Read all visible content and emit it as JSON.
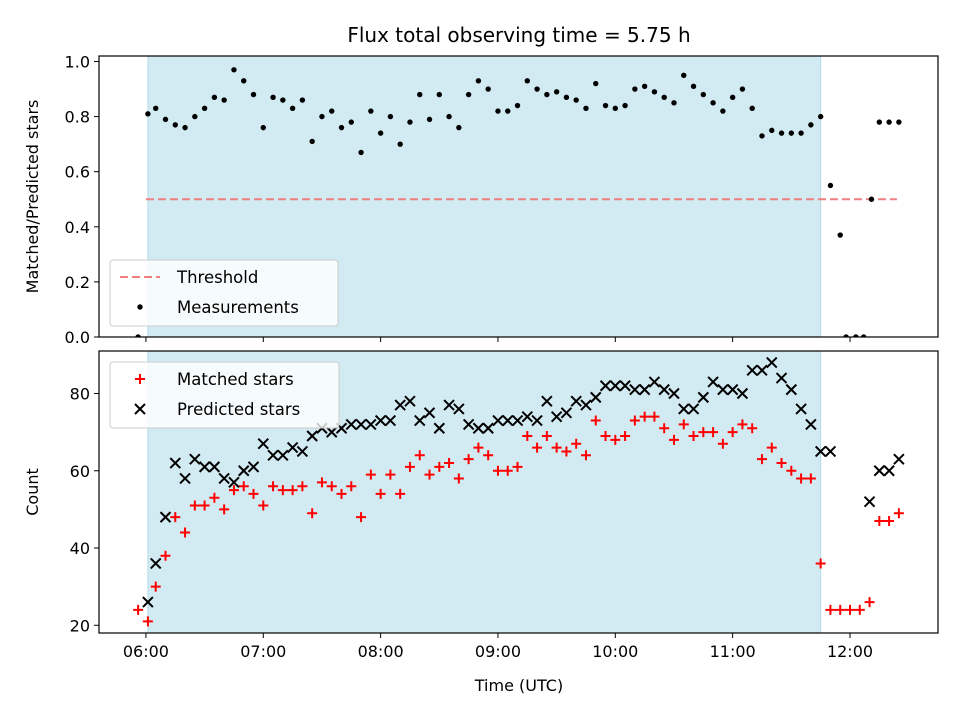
{
  "chart_data": [
    {
      "type": "scatter",
      "title": "Flux total observing time = 5.75 h",
      "xlabel": "",
      "ylabel": "Matched/Predicted stars",
      "xlim": [
        "05:36",
        "12:45"
      ],
      "ylim": [
        0.0,
        1.02
      ],
      "x_ticks": [
        "06:00",
        "07:00",
        "08:00",
        "09:00",
        "10:00",
        "11:00",
        "12:00"
      ],
      "y_ticks": [
        "0.0",
        "0.2",
        "0.4",
        "0.6",
        "0.8",
        "1.0"
      ],
      "shaded_span": {
        "start": "06:01",
        "end": "11:45",
        "color": "#add8e6"
      },
      "legend": {
        "placement": "lower-left",
        "entries": [
          "Threshold",
          "Measurements"
        ]
      },
      "series": [
        {
          "name": "Threshold",
          "style": "dashed-line",
          "color": "#f08080",
          "points": [
            [
              "06:00",
              0.5
            ],
            [
              "12:24",
              0.5
            ]
          ]
        },
        {
          "name": "Measurements",
          "style": "dot",
          "color": "#000000",
          "points": [
            [
              "05:56",
              0.0
            ],
            [
              "06:01",
              0.81
            ],
            [
              "06:05",
              0.83
            ],
            [
              "06:10",
              0.79
            ],
            [
              "06:15",
              0.77
            ],
            [
              "06:20",
              0.76
            ],
            [
              "06:25",
              0.8
            ],
            [
              "06:30",
              0.83
            ],
            [
              "06:35",
              0.87
            ],
            [
              "06:40",
              0.86
            ],
            [
              "06:45",
              0.97
            ],
            [
              "06:50",
              0.93
            ],
            [
              "06:55",
              0.88
            ],
            [
              "07:00",
              0.76
            ],
            [
              "07:05",
              0.87
            ],
            [
              "07:10",
              0.86
            ],
            [
              "07:15",
              0.83
            ],
            [
              "07:20",
              0.86
            ],
            [
              "07:25",
              0.71
            ],
            [
              "07:30",
              0.8
            ],
            [
              "07:35",
              0.82
            ],
            [
              "07:40",
              0.76
            ],
            [
              "07:45",
              0.78
            ],
            [
              "07:50",
              0.67
            ],
            [
              "07:55",
              0.82
            ],
            [
              "08:00",
              0.74
            ],
            [
              "08:05",
              0.8
            ],
            [
              "08:10",
              0.7
            ],
            [
              "08:15",
              0.78
            ],
            [
              "08:20",
              0.88
            ],
            [
              "08:25",
              0.79
            ],
            [
              "08:30",
              0.88
            ],
            [
              "08:35",
              0.8
            ],
            [
              "08:40",
              0.76
            ],
            [
              "08:45",
              0.88
            ],
            [
              "08:50",
              0.93
            ],
            [
              "08:55",
              0.9
            ],
            [
              "09:00",
              0.82
            ],
            [
              "09:05",
              0.82
            ],
            [
              "09:10",
              0.84
            ],
            [
              "09:15",
              0.93
            ],
            [
              "09:20",
              0.9
            ],
            [
              "09:25",
              0.88
            ],
            [
              "09:30",
              0.89
            ],
            [
              "09:35",
              0.87
            ],
            [
              "09:40",
              0.86
            ],
            [
              "09:45",
              0.83
            ],
            [
              "09:50",
              0.92
            ],
            [
              "09:55",
              0.84
            ],
            [
              "10:00",
              0.83
            ],
            [
              "10:05",
              0.84
            ],
            [
              "10:10",
              0.9
            ],
            [
              "10:15",
              0.91
            ],
            [
              "10:20",
              0.89
            ],
            [
              "10:25",
              0.87
            ],
            [
              "10:30",
              0.85
            ],
            [
              "10:35",
              0.95
            ],
            [
              "10:40",
              0.91
            ],
            [
              "10:45",
              0.88
            ],
            [
              "10:50",
              0.85
            ],
            [
              "10:55",
              0.82
            ],
            [
              "11:00",
              0.87
            ],
            [
              "11:05",
              0.9
            ],
            [
              "11:10",
              0.83
            ],
            [
              "11:15",
              0.73
            ],
            [
              "11:20",
              0.75
            ],
            [
              "11:25",
              0.74
            ],
            [
              "11:30",
              0.74
            ],
            [
              "11:35",
              0.74
            ],
            [
              "11:40",
              0.77
            ],
            [
              "11:45",
              0.8
            ],
            [
              "11:50",
              0.55
            ],
            [
              "11:55",
              0.37
            ],
            [
              "11:58",
              0.0
            ],
            [
              "12:03",
              0.0
            ],
            [
              "12:07",
              0.0
            ],
            [
              "12:11",
              0.5
            ],
            [
              "12:15",
              0.78
            ],
            [
              "12:20",
              0.78
            ],
            [
              "12:25",
              0.78
            ]
          ]
        }
      ]
    },
    {
      "type": "scatter",
      "title": "",
      "xlabel": "Time (UTC)",
      "ylabel": "Count",
      "xlim": [
        "05:36",
        "12:45"
      ],
      "ylim": [
        18,
        91
      ],
      "x_ticks": [
        "06:00",
        "07:00",
        "08:00",
        "09:00",
        "10:00",
        "11:00",
        "12:00"
      ],
      "y_ticks": [
        "20",
        "40",
        "60",
        "80"
      ],
      "shaded_span": {
        "start": "06:01",
        "end": "11:45",
        "color": "#add8e6"
      },
      "legend": {
        "placement": "upper-left",
        "entries": [
          "Matched stars",
          "Predicted stars"
        ]
      },
      "series": [
        {
          "name": "Matched stars",
          "marker": "+",
          "color": "#ff0000",
          "points": [
            [
              "05:56",
              24
            ],
            [
              "06:01",
              21
            ],
            [
              "06:05",
              30
            ],
            [
              "06:10",
              38
            ],
            [
              "06:15",
              48
            ],
            [
              "06:20",
              44
            ],
            [
              "06:25",
              51
            ],
            [
              "06:30",
              51
            ],
            [
              "06:35",
              53
            ],
            [
              "06:40",
              50
            ],
            [
              "06:45",
              55
            ],
            [
              "06:50",
              56
            ],
            [
              "06:55",
              54
            ],
            [
              "07:00",
              51
            ],
            [
              "07:05",
              56
            ],
            [
              "07:10",
              55
            ],
            [
              "07:15",
              55
            ],
            [
              "07:20",
              56
            ],
            [
              "07:25",
              49
            ],
            [
              "07:30",
              57
            ],
            [
              "07:35",
              56
            ],
            [
              "07:40",
              54
            ],
            [
              "07:45",
              56
            ],
            [
              "07:50",
              48
            ],
            [
              "07:55",
              59
            ],
            [
              "08:00",
              54
            ],
            [
              "08:05",
              59
            ],
            [
              "08:10",
              54
            ],
            [
              "08:15",
              61
            ],
            [
              "08:20",
              64
            ],
            [
              "08:25",
              59
            ],
            [
              "08:30",
              61
            ],
            [
              "08:35",
              62
            ],
            [
              "08:40",
              58
            ],
            [
              "08:45",
              63
            ],
            [
              "08:50",
              66
            ],
            [
              "08:55",
              64
            ],
            [
              "09:00",
              60
            ],
            [
              "09:05",
              60
            ],
            [
              "09:10",
              61
            ],
            [
              "09:15",
              69
            ],
            [
              "09:20",
              66
            ],
            [
              "09:25",
              69
            ],
            [
              "09:30",
              66
            ],
            [
              "09:35",
              65
            ],
            [
              "09:40",
              67
            ],
            [
              "09:45",
              64
            ],
            [
              "09:50",
              73
            ],
            [
              "09:55",
              69
            ],
            [
              "10:00",
              68
            ],
            [
              "10:05",
              69
            ],
            [
              "10:10",
              73
            ],
            [
              "10:15",
              74
            ],
            [
              "10:20",
              74
            ],
            [
              "10:25",
              71
            ],
            [
              "10:30",
              68
            ],
            [
              "10:35",
              72
            ],
            [
              "10:40",
              69
            ],
            [
              "10:45",
              70
            ],
            [
              "10:50",
              70
            ],
            [
              "10:55",
              67
            ],
            [
              "11:00",
              70
            ],
            [
              "11:05",
              72
            ],
            [
              "11:10",
              71
            ],
            [
              "11:15",
              63
            ],
            [
              "11:20",
              66
            ],
            [
              "11:25",
              62
            ],
            [
              "11:30",
              60
            ],
            [
              "11:35",
              58
            ],
            [
              "11:40",
              58
            ],
            [
              "11:45",
              36
            ],
            [
              "11:50",
              24
            ],
            [
              "11:55",
              24
            ],
            [
              "12:00",
              24
            ],
            [
              "12:05",
              24
            ],
            [
              "12:10",
              26
            ],
            [
              "12:15",
              47
            ],
            [
              "12:20",
              47
            ],
            [
              "12:25",
              49
            ]
          ]
        },
        {
          "name": "Predicted stars",
          "marker": "x",
          "color": "#000000",
          "points": [
            [
              "06:01",
              26
            ],
            [
              "06:05",
              36
            ],
            [
              "06:10",
              48
            ],
            [
              "06:15",
              62
            ],
            [
              "06:20",
              58
            ],
            [
              "06:25",
              63
            ],
            [
              "06:30",
              61
            ],
            [
              "06:35",
              61
            ],
            [
              "06:40",
              58
            ],
            [
              "06:45",
              57
            ],
            [
              "06:50",
              60
            ],
            [
              "06:55",
              61
            ],
            [
              "07:00",
              67
            ],
            [
              "07:05",
              64
            ],
            [
              "07:10",
              64
            ],
            [
              "07:15",
              66
            ],
            [
              "07:20",
              65
            ],
            [
              "07:25",
              69
            ],
            [
              "07:30",
              71
            ],
            [
              "07:35",
              70
            ],
            [
              "07:40",
              71
            ],
            [
              "07:45",
              72
            ],
            [
              "07:50",
              72
            ],
            [
              "07:55",
              72
            ],
            [
              "08:00",
              73
            ],
            [
              "08:05",
              73
            ],
            [
              "08:10",
              77
            ],
            [
              "08:15",
              78
            ],
            [
              "08:20",
              73
            ],
            [
              "08:25",
              75
            ],
            [
              "08:30",
              71
            ],
            [
              "08:35",
              77
            ],
            [
              "08:40",
              76
            ],
            [
              "08:45",
              72
            ],
            [
              "08:50",
              71
            ],
            [
              "08:55",
              71
            ],
            [
              "09:00",
              73
            ],
            [
              "09:05",
              73
            ],
            [
              "09:10",
              73
            ],
            [
              "09:15",
              74
            ],
            [
              "09:20",
              73
            ],
            [
              "09:25",
              78
            ],
            [
              "09:30",
              74
            ],
            [
              "09:35",
              75
            ],
            [
              "09:40",
              78
            ],
            [
              "09:45",
              77
            ],
            [
              "09:50",
              79
            ],
            [
              "09:55",
              82
            ],
            [
              "10:00",
              82
            ],
            [
              "10:05",
              82
            ],
            [
              "10:10",
              81
            ],
            [
              "10:15",
              81
            ],
            [
              "10:20",
              83
            ],
            [
              "10:25",
              81
            ],
            [
              "10:30",
              80
            ],
            [
              "10:35",
              76
            ],
            [
              "10:40",
              76
            ],
            [
              "10:45",
              79
            ],
            [
              "10:50",
              83
            ],
            [
              "10:55",
              81
            ],
            [
              "11:00",
              81
            ],
            [
              "11:05",
              80
            ],
            [
              "11:10",
              86
            ],
            [
              "11:15",
              86
            ],
            [
              "11:20",
              88
            ],
            [
              "11:25",
              84
            ],
            [
              "11:30",
              81
            ],
            [
              "11:35",
              76
            ],
            [
              "11:40",
              72
            ],
            [
              "11:45",
              65
            ],
            [
              "11:50",
              65
            ],
            [
              "12:10",
              52
            ],
            [
              "12:15",
              60
            ],
            [
              "12:20",
              60
            ],
            [
              "12:25",
              63
            ]
          ]
        }
      ]
    }
  ]
}
